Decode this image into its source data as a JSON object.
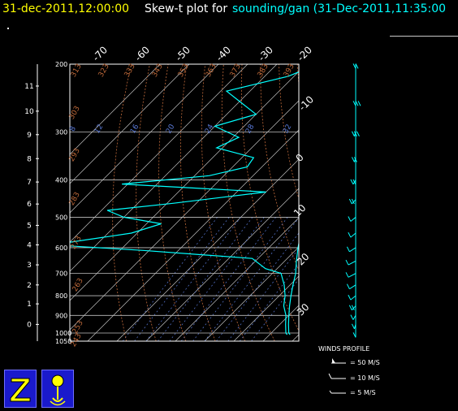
{
  "header": {
    "date": "31-dec-2011,12:00:00",
    "title": "Skew-t plot for",
    "source": "sounding/gan (31-Dec-2011,11:35:00"
  },
  "colors": {
    "date": "#ffff00",
    "title": "#ffffff",
    "source": "#00ffff",
    "sounding": "#00ffff",
    "isotherm": "#c0c0c0",
    "isobar": "#c0c0c0",
    "dry_adiabat": "#c06a3a",
    "mixing_ratio": "#5a7ad8",
    "frame": "#ffffff",
    "logo_bg": "#1a1acc",
    "logo_fg": "#ffff00"
  },
  "chart_data": {
    "type": "line",
    "title": "Skew-t plot for sounding/gan",
    "xlabel": "",
    "ylabel": "",
    "pressure_levels": [
      200,
      300,
      400,
      500,
      600,
      700,
      800,
      900,
      1000,
      1050
    ],
    "ylim": [
      200,
      1050
    ],
    "height_ticks": [
      "11",
      "10",
      "9",
      "8",
      "7",
      "6",
      "5",
      "4",
      "3",
      "2",
      "1",
      "0"
    ],
    "temperature_ticks_top": [
      "-70",
      "-60",
      "-50",
      "-40",
      "-30",
      "-20"
    ],
    "temperature_ticks_right": [
      "-10",
      "0",
      "10",
      "20",
      "30"
    ],
    "dry_adiabat_labels": [
      "313",
      "323",
      "333",
      "343",
      "353",
      "363",
      "373",
      "383",
      "393",
      "303",
      "293",
      "283",
      "273",
      "263",
      "253",
      "243"
    ],
    "mixing_ratio_labels": [
      "8",
      "12",
      "16",
      "20",
      "24",
      "28",
      "32"
    ],
    "series": [
      {
        "key": "temperature",
        "points": [
          [
            200,
            -55
          ],
          [
            225,
            -50
          ],
          [
            250,
            -45
          ],
          [
            300,
            -34
          ],
          [
            350,
            -26
          ],
          [
            400,
            -19
          ],
          [
            450,
            -13
          ],
          [
            500,
            -8
          ],
          [
            550,
            -4
          ],
          [
            600,
            0
          ],
          [
            650,
            4
          ],
          [
            700,
            8
          ],
          [
            750,
            11
          ],
          [
            800,
            14
          ],
          [
            850,
            17
          ],
          [
            900,
            20
          ],
          [
            950,
            23
          ],
          [
            1000,
            26
          ],
          [
            1010,
            27
          ]
        ]
      },
      {
        "key": "dewpoint",
        "points": [
          [
            200,
            -56
          ],
          [
            215,
            -62
          ],
          [
            235,
            -78
          ],
          [
            250,
            -70
          ],
          [
            270,
            -60
          ],
          [
            290,
            -70
          ],
          [
            310,
            -58
          ],
          [
            330,
            -62
          ],
          [
            350,
            -46
          ],
          [
            370,
            -45
          ],
          [
            390,
            -55
          ],
          [
            410,
            -82
          ],
          [
            430,
            -30
          ],
          [
            460,
            -58
          ],
          [
            480,
            -78
          ],
          [
            500,
            -70
          ],
          [
            520,
            -55
          ],
          [
            550,
            -62
          ],
          [
            590,
            -85
          ],
          [
            610,
            -52
          ],
          [
            640,
            -12
          ],
          [
            680,
            -4
          ],
          [
            700,
            3
          ],
          [
            750,
            8
          ],
          [
            800,
            12
          ],
          [
            850,
            15
          ],
          [
            900,
            19
          ],
          [
            950,
            22
          ],
          [
            1000,
            25
          ],
          [
            1010,
            26
          ]
        ]
      }
    ],
    "winds_profile": {
      "title": "WINDS PROFILE",
      "legend": [
        {
          "label": "= 50 M/S"
        },
        {
          "label": "= 10 M/S"
        },
        {
          "label": "= 5 M/S"
        }
      ],
      "barbs": [
        {
          "p": 200,
          "speed": 10,
          "dir": 270
        },
        {
          "p": 250,
          "speed": 15,
          "dir": 270
        },
        {
          "p": 300,
          "speed": 15,
          "dir": 265
        },
        {
          "p": 350,
          "speed": 10,
          "dir": 265
        },
        {
          "p": 400,
          "speed": 8,
          "dir": 260
        },
        {
          "p": 450,
          "speed": 8,
          "dir": 255
        },
        {
          "p": 500,
          "speed": 6,
          "dir": 250
        },
        {
          "p": 550,
          "speed": 5,
          "dir": 250
        },
        {
          "p": 600,
          "speed": 5,
          "dir": 245
        },
        {
          "p": 650,
          "speed": 5,
          "dir": 240
        },
        {
          "p": 700,
          "speed": 5,
          "dir": 240
        },
        {
          "p": 750,
          "speed": 6,
          "dir": 245
        },
        {
          "p": 800,
          "speed": 7,
          "dir": 250
        },
        {
          "p": 850,
          "speed": 8,
          "dir": 255
        },
        {
          "p": 900,
          "speed": 6,
          "dir": 260
        },
        {
          "p": 950,
          "speed": 5,
          "dir": 265
        },
        {
          "p": 1000,
          "speed": 4,
          "dir": 270
        }
      ]
    }
  }
}
